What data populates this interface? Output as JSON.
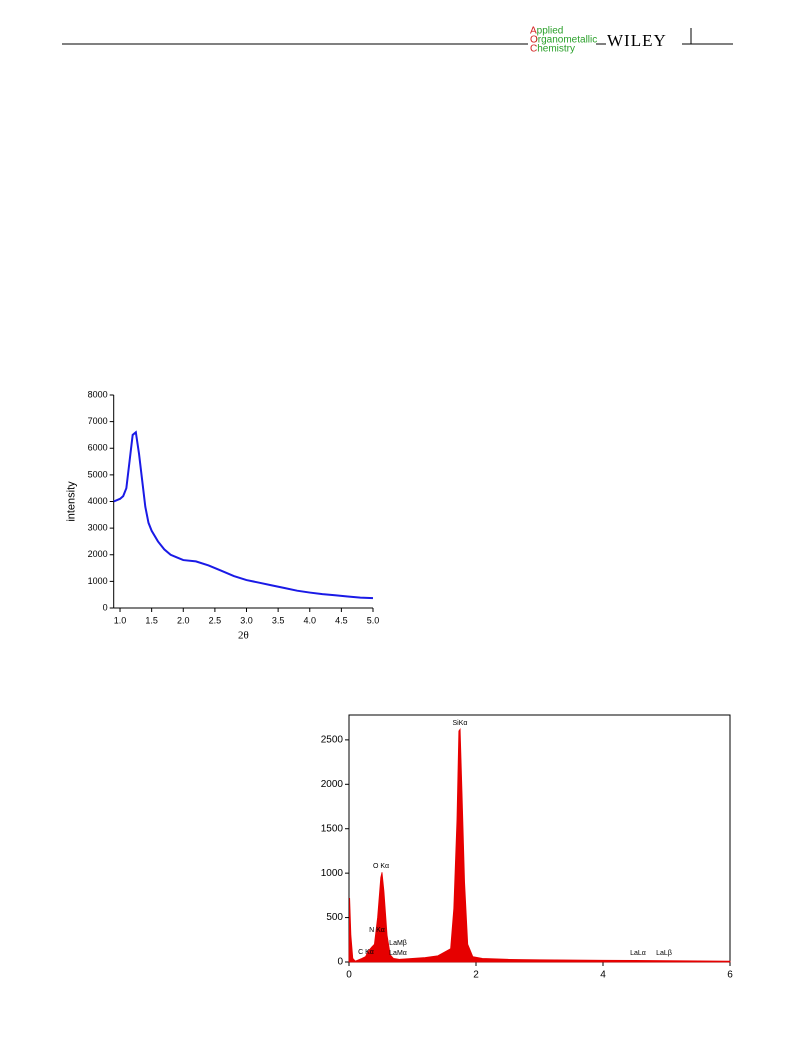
{
  "header": {
    "logo": [
      "Applied",
      "Organometallic",
      "Chemistry"
    ],
    "publisher": "WILEY"
  },
  "chart_data": [
    {
      "type": "line",
      "xlabel": "2θ",
      "ylabel": "intensity",
      "color": "#1a1ae6",
      "x": [
        0.9,
        1.0,
        1.05,
        1.1,
        1.15,
        1.2,
        1.25,
        1.3,
        1.35,
        1.4,
        1.45,
        1.5,
        1.6,
        1.7,
        1.8,
        1.9,
        2.0,
        2.2,
        2.4,
        2.6,
        2.8,
        3.0,
        3.2,
        3.4,
        3.6,
        3.8,
        4.0,
        4.2,
        4.4,
        4.6,
        4.8,
        5.0
      ],
      "values": [
        4000,
        4100,
        4200,
        4500,
        5500,
        6500,
        6600,
        5800,
        4800,
        3800,
        3200,
        2900,
        2500,
        2200,
        2000,
        1900,
        1800,
        1750,
        1600,
        1400,
        1200,
        1050,
        950,
        850,
        750,
        650,
        580,
        520,
        480,
        430,
        390,
        370
      ],
      "xlim": [
        0.9,
        5.0
      ],
      "ylim": [
        0,
        8000
      ],
      "xticks": [
        {
          "value": 1,
          "label": "1.0"
        },
        1.5,
        {
          "value": 2,
          "label": "2.0"
        },
        2.5,
        {
          "value": 3,
          "label": "3.0"
        },
        3.5,
        {
          "value": 4,
          "label": "4.0"
        },
        4.5,
        {
          "value": 5,
          "label": "5.0"
        }
      ],
      "yticks": [
        0,
        1000,
        2000,
        3000,
        4000,
        5000,
        6000,
        7000,
        8000
      ]
    },
    {
      "type": "area",
      "color": "#e60000",
      "x": [
        0,
        0.01,
        0.03,
        0.06,
        0.1,
        0.2,
        0.26,
        0.3,
        0.36,
        0.4,
        0.45,
        0.5,
        0.52,
        0.55,
        0.6,
        0.65,
        0.7,
        0.8,
        1.0,
        1.2,
        1.4,
        1.6,
        1.65,
        1.7,
        1.73,
        1.75,
        1.78,
        1.82,
        1.87,
        1.95,
        2.1,
        2.5,
        3,
        4,
        5,
        6
      ],
      "values": [
        0,
        720,
        300,
        40,
        10,
        40,
        60,
        120,
        170,
        200,
        500,
        950,
        1010,
        800,
        300,
        80,
        40,
        30,
        40,
        50,
        70,
        150,
        600,
        1600,
        2600,
        2620,
        1900,
        900,
        200,
        60,
        40,
        30,
        25,
        20,
        15,
        10
      ],
      "xlim": [
        0,
        6
      ],
      "ylim": [
        0,
        2780
      ],
      "xticks": [
        0,
        2,
        4,
        6
      ],
      "yticks": [
        0,
        500,
        1000,
        1500,
        2000,
        2500
      ],
      "annotations": [
        "SiKα",
        "O Kα",
        "N Kα",
        "C Kα",
        "LaMβ",
        "LaMα",
        "LaLα",
        "LaLβ"
      ]
    }
  ]
}
